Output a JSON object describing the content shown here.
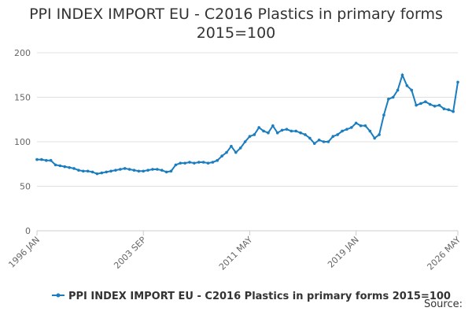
{
  "chart_data": {
    "type": "line",
    "title": "PPI INDEX IMPORT EU - C2016 Plastics in primary forms 2015=100",
    "categories": [
      "1996 JAN",
      null,
      null,
      null,
      null,
      null,
      null,
      null,
      null,
      null,
      null,
      null,
      null,
      null,
      null,
      null,
      null,
      null,
      null,
      null,
      null,
      null,
      null,
      "2003 SEP",
      null,
      null,
      null,
      null,
      null,
      null,
      null,
      null,
      null,
      null,
      null,
      null,
      null,
      null,
      null,
      null,
      null,
      null,
      null,
      null,
      null,
      null,
      "2011 MAY",
      null,
      null,
      null,
      null,
      null,
      null,
      null,
      null,
      null,
      null,
      null,
      null,
      null,
      null,
      null,
      null,
      null,
      null,
      null,
      null,
      null,
      null,
      "2019 JAN",
      null,
      null,
      null,
      null,
      null,
      null,
      null,
      null,
      null,
      null,
      null,
      null,
      null,
      null,
      null,
      null,
      null,
      null,
      null,
      null,
      null,
      "2026 MAY"
    ],
    "series": [
      {
        "name": "PPI INDEX IMPORT EU - C2016 Plastics in primary forms 2015=100",
        "color": "#1a7dc0",
        "values": [
          80,
          80,
          79,
          79,
          74,
          73,
          72,
          71,
          70,
          68,
          67,
          67,
          66,
          64,
          65,
          66,
          67,
          68,
          69,
          70,
          69,
          68,
          67,
          67,
          68,
          69,
          69,
          68,
          66,
          67,
          74,
          76,
          76,
          77,
          76,
          77,
          77,
          76,
          77,
          79,
          84,
          88,
          95,
          88,
          93,
          100,
          106,
          108,
          116,
          112,
          110,
          118,
          110,
          113,
          114,
          112,
          112,
          110,
          108,
          104,
          98,
          102,
          100,
          100,
          106,
          108,
          112,
          114,
          116,
          121,
          118,
          118,
          112,
          104,
          108,
          130,
          148,
          150,
          158,
          175,
          163,
          158,
          141,
          143,
          145,
          142,
          140,
          141,
          137,
          136,
          134,
          167
        ]
      }
    ],
    "ylim": [
      0,
      200
    ],
    "yticks": [
      0,
      50,
      100,
      150,
      200
    ],
    "grid": true,
    "source": "Source:"
  }
}
